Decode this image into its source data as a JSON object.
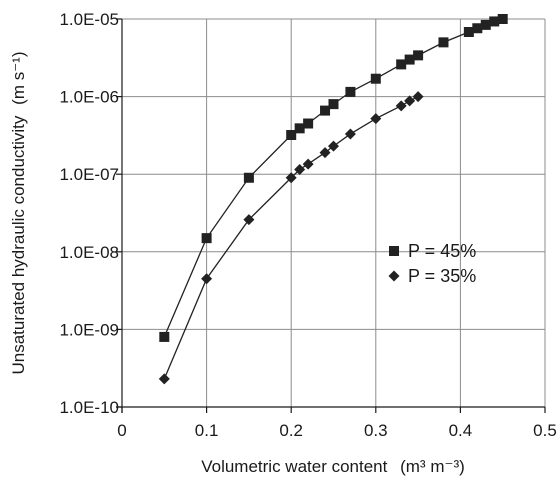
{
  "chart_data": {
    "type": "scatter",
    "x_scale": "linear",
    "y_scale": "log",
    "xlim": [
      0,
      0.5
    ],
    "ylim": [
      1e-10,
      1e-05
    ],
    "x_ticks": [
      0,
      0.1,
      0.2,
      0.3,
      0.4,
      0.5
    ],
    "x_tick_labels": [
      "0",
      "0.1",
      "0.2",
      "0.3",
      "0.4",
      "0.5"
    ],
    "y_ticks": [
      1e-10,
      1e-09,
      1e-08,
      1e-07,
      1e-06,
      1e-05
    ],
    "y_tick_labels": [
      "1.0E-10",
      "1.0E-09",
      "1.0E-08",
      "1.0E-07",
      "1.0E-06",
      "1.0E-05"
    ],
    "xlabel": "Volumetric water content",
    "xlabel_unit": "(m³ m⁻³)",
    "ylabel": "Unsaturated hydraulic conductivity",
    "ylabel_unit": "(m s⁻¹)",
    "grid": true,
    "legend_position": "right",
    "series": [
      {
        "name": "P = 45%",
        "marker": "square",
        "color": "#222222",
        "points": [
          [
            0.05,
            8e-10
          ],
          [
            0.1,
            1.5e-08
          ],
          [
            0.15,
            9e-08
          ],
          [
            0.2,
            3.2e-07
          ],
          [
            0.21,
            3.9e-07
          ],
          [
            0.22,
            4.5e-07
          ],
          [
            0.24,
            6.6e-07
          ],
          [
            0.25,
            8e-07
          ],
          [
            0.27,
            1.15e-06
          ],
          [
            0.3,
            1.7e-06
          ],
          [
            0.33,
            2.6e-06
          ],
          [
            0.34,
            3e-06
          ],
          [
            0.35,
            3.4e-06
          ],
          [
            0.38,
            5e-06
          ],
          [
            0.41,
            6.8e-06
          ],
          [
            0.42,
            7.6e-06
          ],
          [
            0.43,
            8.4e-06
          ],
          [
            0.44,
            9.3e-06
          ],
          [
            0.45,
            1e-05
          ]
        ]
      },
      {
        "name": "P = 35%",
        "marker": "diamond",
        "color": "#222222",
        "points": [
          [
            0.05,
            2.3e-10
          ],
          [
            0.1,
            4.5e-09
          ],
          [
            0.15,
            2.6e-08
          ],
          [
            0.2,
            9e-08
          ],
          [
            0.21,
            1.15e-07
          ],
          [
            0.22,
            1.35e-07
          ],
          [
            0.24,
            1.9e-07
          ],
          [
            0.25,
            2.3e-07
          ],
          [
            0.27,
            3.3e-07
          ],
          [
            0.3,
            5.2e-07
          ],
          [
            0.33,
            7.6e-07
          ],
          [
            0.34,
            8.8e-07
          ],
          [
            0.35,
            1e-06
          ]
        ]
      }
    ]
  },
  "colors": {
    "background": "#ffffff",
    "grid": "#8c8c8c",
    "axis": "#1a1a1a",
    "series": "#222222"
  }
}
